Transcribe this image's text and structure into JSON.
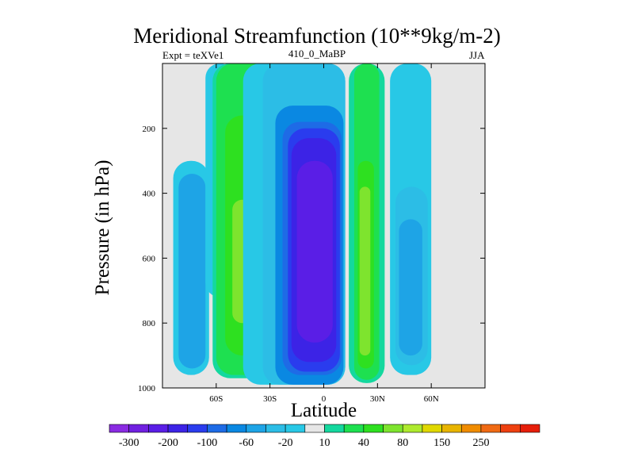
{
  "chart_data": {
    "type": "heatmap",
    "title": "Meridional Streamfunction (10**9kg/m-2)",
    "subtitle_left": "Expt = teXVe1",
    "subtitle_center": "410_0_MaBP",
    "subtitle_right": "JJA",
    "xlabel": "Latitude",
    "ylabel": "Pressure (in hPa)",
    "xlim": [
      -90,
      90
    ],
    "ylim": [
      1000,
      0
    ],
    "x_ticks": [
      {
        "value": -60,
        "label": "60S"
      },
      {
        "value": -30,
        "label": "30S"
      },
      {
        "value": 0,
        "label": "0"
      },
      {
        "value": 30,
        "label": "30N"
      },
      {
        "value": 60,
        "label": "60N"
      }
    ],
    "y_ticks": [
      {
        "value": 200,
        "label": "200"
      },
      {
        "value": 400,
        "label": "400"
      },
      {
        "value": 600,
        "label": "600"
      },
      {
        "value": 800,
        "label": "800"
      },
      {
        "value": 1000,
        "label": "1000"
      }
    ],
    "colorbar": {
      "colors": [
        "#8a2be2",
        "#7020e0",
        "#5a1ee6",
        "#3c23e6",
        "#2a3cee",
        "#1e6be6",
        "#0a88e2",
        "#1ea4e6",
        "#2cbde6",
        "#28c8e6",
        "#e6e6e6",
        "#14d89e",
        "#1ee050",
        "#2ee020",
        "#7ee42e",
        "#aeea2e",
        "#e0d800",
        "#e8b400",
        "#f08c00",
        "#f06a14",
        "#ee4010",
        "#e61e0a"
      ],
      "labels": [
        {
          "after_index": 0,
          "label": "-300"
        },
        {
          "after_index": 2,
          "label": "-200"
        },
        {
          "after_index": 4,
          "label": "-100"
        },
        {
          "after_index": 6,
          "label": "-60"
        },
        {
          "after_index": 8,
          "label": "-20"
        },
        {
          "after_index": 10,
          "label": "10"
        },
        {
          "after_index": 12,
          "label": "40"
        },
        {
          "after_index": 14,
          "label": "80"
        },
        {
          "after_index": 16,
          "label": "150"
        },
        {
          "after_index": 18,
          "label": "250"
        }
      ]
    },
    "cells": [
      {
        "name": "far-south-cell",
        "center_lat": -73,
        "extent_lat": [
          -84,
          -64
        ],
        "p_top": 300,
        "p_bottom": 960,
        "peak": -60
      },
      {
        "name": "southern-positive-cell",
        "center_lat": -45,
        "extent_lat": [
          -60,
          -27
        ],
        "p_top": 0,
        "p_bottom": 960,
        "peak": 80
      },
      {
        "name": "southern-upper-cyan-band",
        "center_lat": -58,
        "extent_lat": [
          -66,
          -50
        ],
        "p_top": 0,
        "p_bottom": 720,
        "peak": -20
      },
      {
        "name": "equatorial-negative-cell",
        "center_lat": -7,
        "extent_lat": [
          -27,
          12
        ],
        "p_top": 0,
        "p_bottom": 990,
        "peak": -200
      },
      {
        "name": "northern-positive-cell",
        "center_lat": 22,
        "extent_lat": [
          14,
          34
        ],
        "p_top": 0,
        "p_bottom": 980,
        "peak": 80
      },
      {
        "name": "northern-negative-cell",
        "center_lat": 48,
        "extent_lat": [
          37,
          60
        ],
        "p_top": 0,
        "p_bottom": 960,
        "peak": -60
      }
    ]
  }
}
